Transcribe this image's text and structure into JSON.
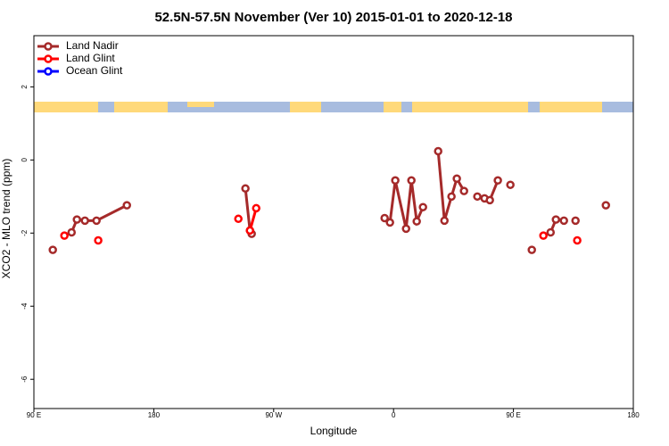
{
  "chart_data": {
    "type": "line",
    "title": "52.5N-57.5N November (Ver 10)   2015-01-01 to 2020-12-18",
    "x_label": "Longitude",
    "y_label": "XCO2 - MLO trend (ppm)",
    "xlim": [
      -270,
      180
    ],
    "xticks": [
      {
        "value": -270,
        "label": "90 E"
      },
      {
        "value": -180,
        "label": "180"
      },
      {
        "value": -90,
        "label": "90 W"
      },
      0,
      {
        "value": 90,
        "label": "90 E"
      },
      180
    ],
    "ylim": [
      -6.8,
      3.4
    ],
    "yticks": [
      2,
      0,
      -2,
      -4,
      -6
    ],
    "legend": "top-left",
    "series": [
      {
        "name": "Land Nadir",
        "color": "#a52a2a",
        "x": [
          -255.8,
          null,
          -241.7,
          -237.7,
          -231.7,
          -223,
          -200.2,
          null,
          -111.2,
          -107.8,
          -106.5,
          null,
          -6.7,
          -2.7,
          1.3,
          9.4,
          13.4,
          17.4,
          22.1,
          null,
          33.5,
          38.2,
          43.5,
          47.5,
          52.9,
          null,
          62.9,
          68.3,
          72.3,
          78.3,
          null,
          87.7,
          null,
          103.8,
          null,
          117.9,
          121.9,
          127.9,
          null,
          136.6,
          null,
          159.4
        ],
        "values": [
          -2.46,
          null,
          -1.98,
          -1.63,
          -1.66,
          -1.66,
          -1.24,
          null,
          -0.78,
          -1.93,
          -2.02,
          null,
          -1.59,
          -1.71,
          -0.56,
          -1.88,
          -0.56,
          -1.68,
          -1.29,
          null,
          0.24,
          -1.66,
          -1.0,
          -0.51,
          -0.85,
          null,
          -1.0,
          -1.05,
          -1.1,
          -0.56,
          null,
          -0.68,
          null,
          -2.46,
          null,
          -1.98,
          -1.63,
          -1.66,
          null,
          -1.66,
          null,
          -1.24
        ]
      },
      {
        "name": "Land Glint",
        "color": "#ff0000",
        "x": [
          -247.1,
          null,
          -221.7,
          null,
          -116.5,
          null,
          -107.8,
          -103.1,
          null,
          112.5,
          null,
          137.9
        ],
        "values": [
          -2.07,
          null,
          -2.2,
          null,
          -1.61,
          null,
          -1.93,
          -1.32,
          null,
          -2.07,
          null,
          -2.2
        ]
      },
      {
        "name": "Ocean Glint",
        "color": "#0000ff",
        "x": [],
        "values": []
      }
    ]
  }
}
